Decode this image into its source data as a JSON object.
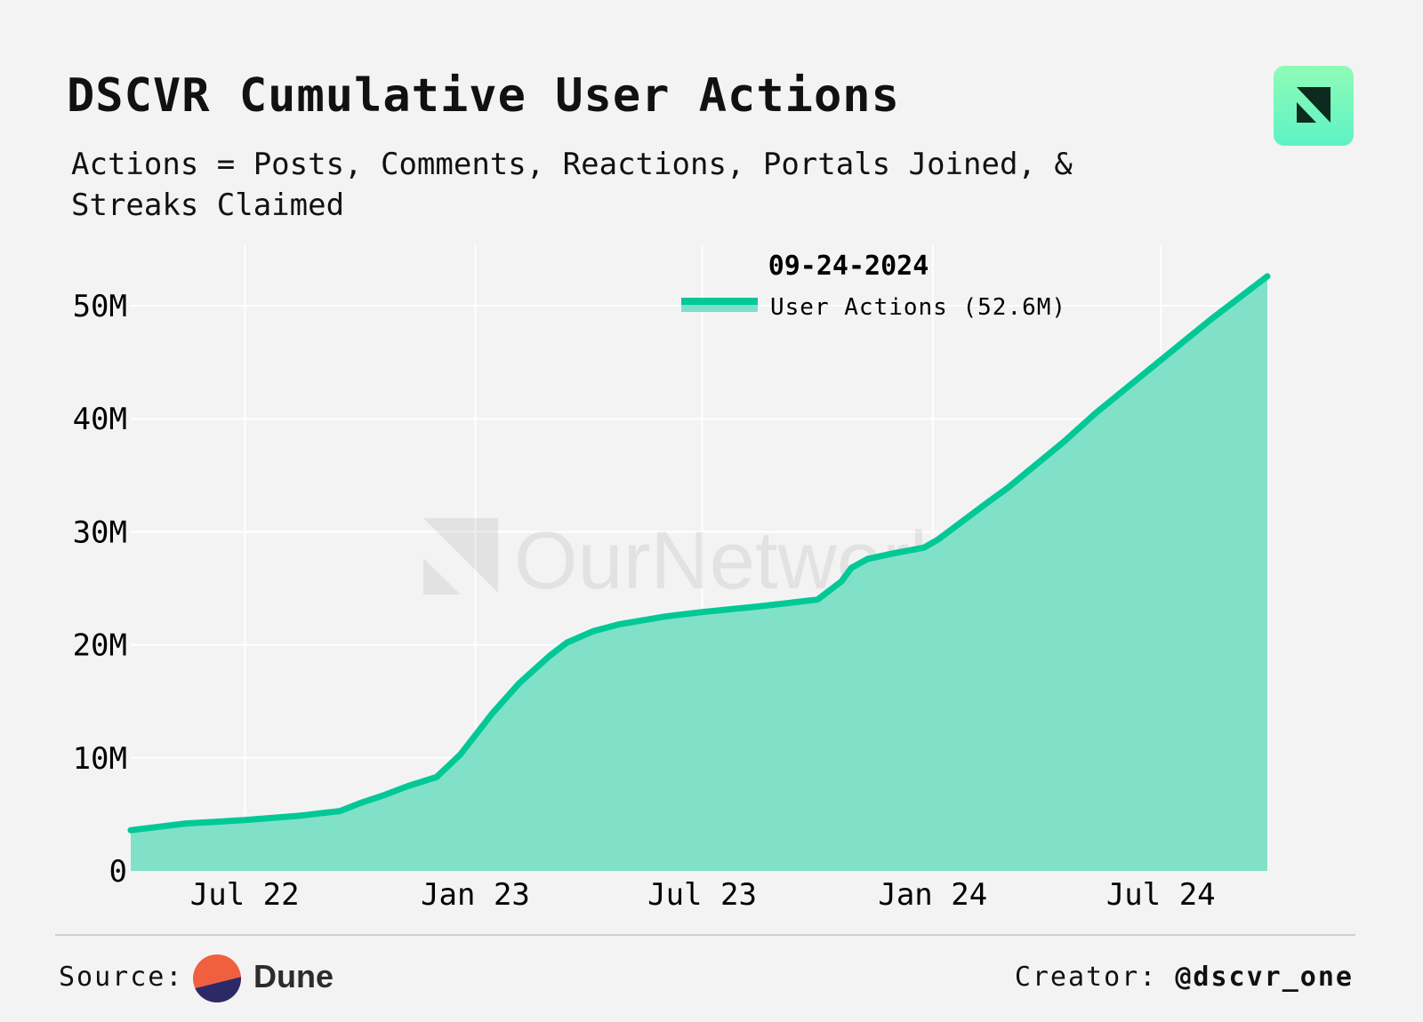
{
  "header": {
    "title": "DSCVR Cumulative User Actions",
    "subtitle": "Actions = Posts, Comments, Reactions, Portals Joined, & Streaks Claimed",
    "logo_icon": "ournetwork-logo-icon"
  },
  "watermark": {
    "text": "OurNetwork"
  },
  "footer": {
    "source_label": "Source:",
    "source_name": "Dune",
    "creator_label": "Creator:",
    "creator_handle": "@dscvr_one"
  },
  "chart_data": {
    "type": "area",
    "legend_title": "09-24-2024",
    "legend_position": "top-center",
    "series": [
      {
        "name": "User Actions (52.6M)",
        "color": "#00c896",
        "fill": "#7ce0c6",
        "points": [
          [
            "2022-04-01",
            3.6
          ],
          [
            "2022-05-15",
            4.2
          ],
          [
            "2022-07-01",
            4.5
          ],
          [
            "2022-08-15",
            4.9
          ],
          [
            "2022-09-15",
            5.3
          ],
          [
            "2022-10-01",
            6.0
          ],
          [
            "2022-10-20",
            6.7
          ],
          [
            "2022-11-08",
            7.5
          ],
          [
            "2022-12-01",
            8.3
          ],
          [
            "2022-12-20",
            10.3
          ],
          [
            "2023-01-15",
            14.0
          ],
          [
            "2023-02-05",
            16.6
          ],
          [
            "2023-03-01",
            19.0
          ],
          [
            "2023-03-15",
            20.2
          ],
          [
            "2023-04-05",
            21.2
          ],
          [
            "2023-04-25",
            21.8
          ],
          [
            "2023-06-01",
            22.5
          ],
          [
            "2023-07-01",
            22.9
          ],
          [
            "2023-08-15",
            23.4
          ],
          [
            "2023-10-01",
            24.0
          ],
          [
            "2023-10-20",
            25.6
          ],
          [
            "2023-10-28",
            26.8
          ],
          [
            "2023-11-10",
            27.6
          ],
          [
            "2023-12-01",
            28.1
          ],
          [
            "2023-12-25",
            28.6
          ],
          [
            "2024-01-05",
            29.3
          ],
          [
            "2024-02-15",
            32.7
          ],
          [
            "2024-03-01",
            33.9
          ],
          [
            "2024-04-15",
            38.0
          ],
          [
            "2024-05-10",
            40.5
          ],
          [
            "2024-06-20",
            44.2
          ],
          [
            "2024-08-10",
            48.8
          ],
          [
            "2024-09-24",
            52.6
          ]
        ]
      }
    ],
    "x_ticks": [
      {
        "date": "2022-07-01",
        "label": "Jul 22"
      },
      {
        "date": "2023-01-01",
        "label": "Jan 23"
      },
      {
        "date": "2023-07-01",
        "label": "Jul 23"
      },
      {
        "date": "2024-01-01",
        "label": "Jan 24"
      },
      {
        "date": "2024-07-01",
        "label": "Jul 24"
      }
    ],
    "y_ticks": [
      {
        "value": 0,
        "label": "0"
      },
      {
        "value": 10,
        "label": "10M"
      },
      {
        "value": 20,
        "label": "20M"
      },
      {
        "value": 30,
        "label": "30M"
      },
      {
        "value": 40,
        "label": "40M"
      },
      {
        "value": 50,
        "label": "50M"
      }
    ],
    "ylim": [
      0,
      55
    ],
    "grid": true
  }
}
